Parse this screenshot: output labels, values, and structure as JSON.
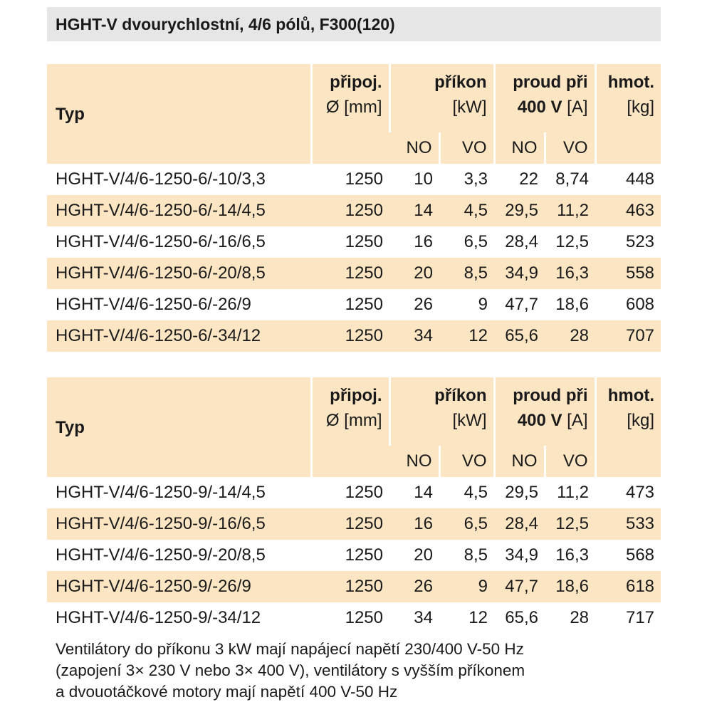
{
  "title": "HGHT-V dvourychlostní, 4/6 pólů, F300(120)",
  "tables": [
    {
      "header": {
        "typ": "Typ",
        "pripoj": [
          "připoj.",
          "Ø [mm]"
        ],
        "prikon": [
          "příkon",
          "[kW]"
        ],
        "proud": [
          "proud při",
          "400 V",
          "[A]"
        ],
        "hmot": [
          "hmot.",
          "[kg]"
        ],
        "sub": [
          "NO",
          "VO",
          "NO",
          "VO"
        ]
      },
      "rows": [
        [
          "HGHT-V/4/6-1250-6/-10/3,3",
          "1250",
          "10",
          "3,3",
          "22",
          "8,74",
          "448"
        ],
        [
          "HGHT-V/4/6-1250-6/-14/4,5",
          "1250",
          "14",
          "4,5",
          "29,5",
          "11,2",
          "463"
        ],
        [
          "HGHT-V/4/6-1250-6/-16/6,5",
          "1250",
          "16",
          "6,5",
          "28,4",
          "12,5",
          "523"
        ],
        [
          "HGHT-V/4/6-1250-6/-20/8,5",
          "1250",
          "20",
          "8,5",
          "34,9",
          "16,3",
          "558"
        ],
        [
          "HGHT-V/4/6-1250-6/-26/9",
          "1250",
          "26",
          "9",
          "47,7",
          "18,6",
          "608"
        ],
        [
          "HGHT-V/4/6-1250-6/-34/12",
          "1250",
          "34",
          "12",
          "65,6",
          "28",
          "707"
        ]
      ]
    },
    {
      "header": {
        "typ": "Typ",
        "pripoj": [
          "připoj.",
          "Ø [mm]"
        ],
        "prikon": [
          "příkon",
          "[kW]"
        ],
        "proud": [
          "proud při",
          "400 V",
          "[A]"
        ],
        "hmot": [
          "hmot.",
          "[kg]"
        ],
        "sub": [
          "NO",
          "VO",
          "NO",
          "VO"
        ]
      },
      "rows": [
        [
          "HGHT-V/4/6-1250-9/-14/4,5",
          "1250",
          "14",
          "4,5",
          "29,5",
          "11,2",
          "473"
        ],
        [
          "HGHT-V/4/6-1250-9/-16/6,5",
          "1250",
          "16",
          "6,5",
          "28,4",
          "12,5",
          "533"
        ],
        [
          "HGHT-V/4/6-1250-9/-20/8,5",
          "1250",
          "20",
          "8,5",
          "34,9",
          "16,3",
          "568"
        ],
        [
          "HGHT-V/4/6-1250-9/-26/9",
          "1250",
          "26",
          "9",
          "47,7",
          "18,6",
          "618"
        ],
        [
          "HGHT-V/4/6-1250-9/-34/12",
          "1250",
          "34",
          "12",
          "65,6",
          "28",
          "717"
        ]
      ]
    }
  ],
  "note": [
    "Ventilátory do příkonu 3 kW mají napájecí napětí 230/400 V-50 Hz",
    "(zapojení 3× 230 V nebo 3× 400 V), ventilátory s vyšším příkonem",
    "a dvouotáčkové motory mají napětí 400 V-50 Hz"
  ]
}
